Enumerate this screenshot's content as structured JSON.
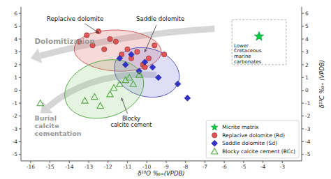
{
  "chart_data": {
    "type": "scatter",
    "xlabel": "δ¹⁸O ‰₌(VPDB)",
    "ylabel": "δ¹³C ‰₌ (VPDB)",
    "xlim": [
      -16.5,
      -2.0
    ],
    "ylim": [
      -5.5,
      6.5
    ],
    "xticks": [
      -16,
      -15,
      -14,
      -13,
      -12,
      -11,
      -10,
      -9,
      -8,
      -7,
      -6,
      -5,
      -4,
      -3
    ],
    "yticks": [
      -5,
      -4,
      -3,
      -2,
      -1,
      0,
      1,
      2,
      3,
      4,
      5,
      6
    ],
    "grid": false,
    "legend": "lower right",
    "series": [
      {
        "name": "Micrite matrix",
        "color": "#00cc44",
        "marker": "star",
        "x": [
          -4.2
        ],
        "values": [
          4.2
        ]
      },
      {
        "name": "Replacive dolomite (Rd)",
        "color": "#e05555",
        "marker": "circle",
        "x": [
          -13.5,
          -13.1,
          -12.8,
          -12.5,
          -12.2,
          -11.9,
          -11.6,
          -11.3,
          -11.0,
          -10.8,
          -10.5,
          -10.2,
          -9.9,
          -9.6,
          -9.1,
          -10.1
        ],
        "values": [
          3.8,
          4.3,
          3.5,
          4.6,
          3.2,
          4.0,
          3.8,
          2.8,
          3.2,
          2.5,
          3.0,
          2.0,
          2.5,
          3.5,
          2.8,
          1.8
        ]
      },
      {
        "name": "Saddle dolomite (Sd)",
        "color": "#3333cc",
        "marker": "diamond",
        "x": [
          -11.4,
          -11.1,
          -10.8,
          -10.4,
          -10.1,
          -9.7,
          -9.4,
          -8.4,
          -7.9
        ],
        "values": [
          2.5,
          2.0,
          2.8,
          1.5,
          2.2,
          1.8,
          1.0,
          0.5,
          -0.6
        ]
      },
      {
        "name": "Blocky calcite cement (BCc)",
        "color": "#55aa44",
        "marker": "triangle-open",
        "x": [
          -15.5,
          -13.2,
          -12.7,
          -12.4,
          -11.9,
          -11.7,
          -11.4,
          -11.1,
          -10.9,
          -10.7,
          -10.4
        ],
        "values": [
          -1.0,
          -0.8,
          -0.5,
          -1.2,
          -0.3,
          0.2,
          0.5,
          0.8,
          1.0,
          0.5,
          1.2
        ]
      }
    ],
    "annotations": [
      {
        "text": "Replacive dolomite"
      },
      {
        "text": "Saddle dolomite"
      },
      {
        "text": "Blocky\ncalcite cement"
      },
      {
        "text": "Dolomitization"
      },
      {
        "text": "Burial\ncalcite\ncementation"
      },
      {
        "text": "Lower\nCretaceous\nmarine\ncarbonates"
      }
    ]
  }
}
